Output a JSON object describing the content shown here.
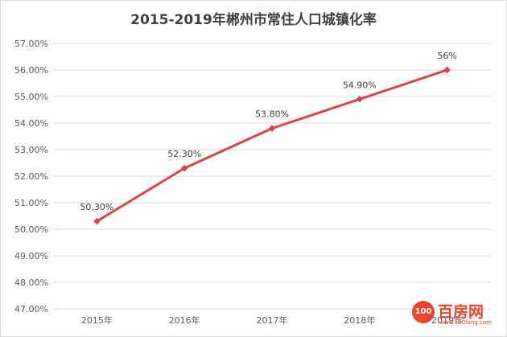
{
  "chart_data": {
    "type": "line",
    "title": "2015-2019年郴州市常住人口城镇化率",
    "xlabel": "",
    "ylabel": "",
    "categories": [
      "2015年",
      "2016年",
      "2017年",
      "2018年",
      "2019年"
    ],
    "series": [
      {
        "values": [
          50.3,
          52.3,
          53.8,
          54.9,
          56.0
        ],
        "labels": [
          "50.30%",
          "52.30%",
          "53.80%",
          "54.90%",
          "56%"
        ],
        "color": "#d94544"
      }
    ],
    "ylim": [
      47,
      57
    ],
    "yticks": [
      "47.00%",
      "48.00%",
      "49.00%",
      "50.00%",
      "51.00%",
      "52.00%",
      "53.00%",
      "54.00%",
      "55.00%",
      "56.00%",
      "57.00%"
    ],
    "grid": true,
    "gridColor": "#d9d9d9",
    "legend": "none"
  },
  "watermark": {
    "badge": "100",
    "text": "百房网",
    "sub": "www.100fang.com"
  }
}
